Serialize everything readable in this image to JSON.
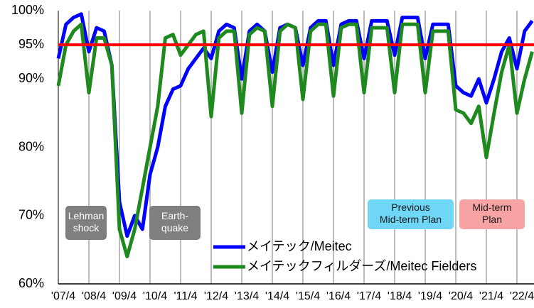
{
  "chart_data": {
    "type": "line",
    "ylim": [
      60,
      100
    ],
    "yticks": [
      {
        "value": 100,
        "label": "100%"
      },
      {
        "value": 95,
        "label": "95%"
      },
      {
        "value": 90,
        "label": "90%"
      },
      {
        "value": 80,
        "label": "80%"
      },
      {
        "value": 70,
        "label": "70%"
      },
      {
        "value": 60,
        "label": "60%"
      }
    ],
    "xticks": [
      {
        "value": "2007-04",
        "label": "'07/4"
      },
      {
        "value": "2008-04",
        "label": "'08/4"
      },
      {
        "value": "2009-04",
        "label": "'09/4"
      },
      {
        "value": "2010-04",
        "label": "'10/4"
      },
      {
        "value": "2011-04",
        "label": "'11/4"
      },
      {
        "value": "2012-04",
        "label": "'12/4"
      },
      {
        "value": "2013-04",
        "label": "'13/4"
      },
      {
        "value": "2014-04",
        "label": "'14/4"
      },
      {
        "value": "2015-04",
        "label": "'15/4"
      },
      {
        "value": "2016-04",
        "label": "'16/4"
      },
      {
        "value": "2017-04",
        "label": "'17/4"
      },
      {
        "value": "2018-04",
        "label": "'18/4"
      },
      {
        "value": "2019-04",
        "label": "'19/4"
      },
      {
        "value": "2020-04",
        "label": "'20/4"
      },
      {
        "value": "2021-04",
        "label": "'21/4"
      },
      {
        "value": "2022-04",
        "label": "'22/4"
      }
    ],
    "grid": true,
    "reference_line": {
      "value": 95,
      "color": "#ff0000"
    },
    "x": [
      "2007-04",
      "2007-07",
      "2007-10",
      "2008-01",
      "2008-04",
      "2008-07",
      "2008-10",
      "2009-01",
      "2009-04",
      "2009-07",
      "2009-10",
      "2010-01",
      "2010-04",
      "2010-07",
      "2010-10",
      "2011-01",
      "2011-04",
      "2011-07",
      "2011-10",
      "2012-01",
      "2012-04",
      "2012-07",
      "2012-10",
      "2013-01",
      "2013-04",
      "2013-07",
      "2013-10",
      "2014-01",
      "2014-04",
      "2014-07",
      "2014-10",
      "2015-01",
      "2015-04",
      "2015-07",
      "2015-10",
      "2016-01",
      "2016-04",
      "2016-07",
      "2016-10",
      "2017-01",
      "2017-04",
      "2017-07",
      "2017-10",
      "2018-01",
      "2018-04",
      "2018-07",
      "2018-10",
      "2019-01",
      "2019-04",
      "2019-07",
      "2019-10",
      "2020-01",
      "2020-04",
      "2020-07",
      "2020-10",
      "2021-01",
      "2021-04",
      "2021-07",
      "2021-10",
      "2022-01",
      "2022-04",
      "2022-07",
      "2022-10"
    ],
    "series": [
      {
        "name": "メイテック/Meitec",
        "color": "#0000ff",
        "values": [
          93,
          98,
          99,
          99.5,
          94,
          97.5,
          97,
          92,
          72,
          67,
          70,
          68,
          76,
          80,
          86,
          88.5,
          89,
          91.5,
          93,
          94.5,
          93,
          97,
          98,
          97.5,
          90,
          97,
          98,
          97,
          91,
          97.5,
          98,
          97.5,
          92,
          97.5,
          98.5,
          98.5,
          92,
          98,
          98.5,
          98.5,
          93,
          98.5,
          98.5,
          98.5,
          93.5,
          99,
          99,
          99,
          93,
          98,
          98,
          98,
          89,
          88,
          87.5,
          90,
          86.5,
          90,
          94,
          96,
          91.5,
          97,
          98.5
        ]
      },
      {
        "name": "メイテックフィルダーズ/Meitec Fielders",
        "color": "#1e8a1e",
        "values": [
          89,
          95,
          97,
          98,
          88,
          96,
          96,
          92,
          68,
          64,
          68,
          74,
          80,
          86,
          96,
          96.5,
          93.5,
          95,
          96.5,
          97,
          84.5,
          96,
          97,
          97,
          85,
          96.5,
          97.5,
          97,
          86,
          97,
          98,
          97.5,
          87,
          97,
          98,
          98,
          87.5,
          97.5,
          98,
          98,
          88,
          97.5,
          97.5,
          97.5,
          88,
          98,
          98,
          98,
          88,
          97,
          97,
          97,
          85.5,
          85,
          83.5,
          86,
          78.5,
          85,
          91,
          95,
          85,
          90,
          94
        ]
      }
    ],
    "annotations": [
      {
        "text": [
          "Lehman",
          "shock"
        ],
        "color": "#7f7f7f",
        "text_color": "#ffffff"
      },
      {
        "text": [
          "Earth-",
          "quake"
        ],
        "color": "#7f7f7f",
        "text_color": "#ffffff"
      },
      {
        "text": [
          "Previous",
          "Mid-term Plan"
        ],
        "color": "#6fd6f6",
        "text_color": "#1a1a1a"
      },
      {
        "text": [
          "Mid-term",
          "Plan"
        ],
        "color": "#f7a3a3",
        "text_color": "#1a1a1a"
      }
    ]
  }
}
